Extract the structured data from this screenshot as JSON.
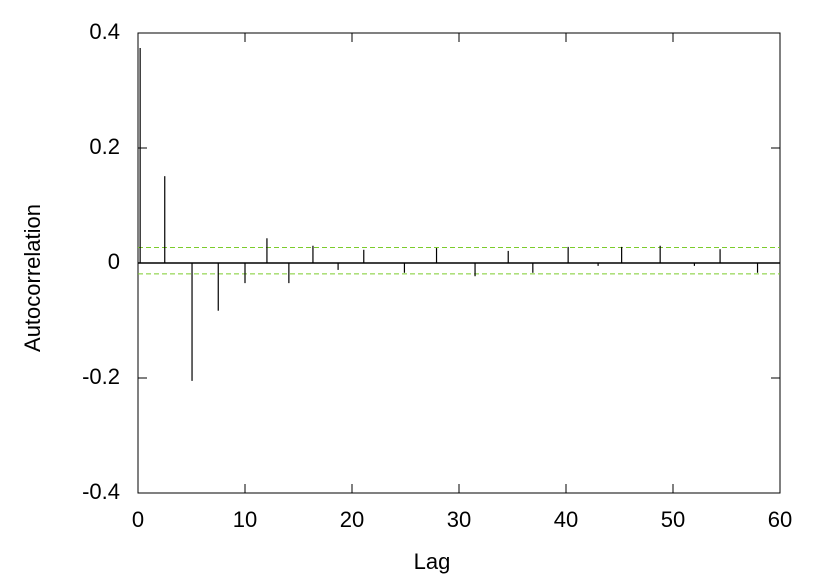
{
  "chart_data": {
    "type": "stem",
    "xlabel": "Lag",
    "ylabel": "Autocorrelation",
    "x": [
      0.2,
      2.5,
      5.05,
      7.5,
      10.0,
      12.05,
      14.1,
      16.35,
      18.7,
      21.1,
      24.9,
      27.9,
      31.5,
      34.6,
      36.9,
      40.2,
      43.0,
      45.2,
      48.8,
      52.0,
      54.4,
      57.9
    ],
    "values": [
      0.374,
      0.151,
      -0.205,
      -0.083,
      -0.035,
      0.043,
      -0.035,
      0.03,
      -0.012,
      0.023,
      -0.017,
      0.026,
      -0.023,
      0.021,
      -0.017,
      0.028,
      -0.005,
      0.028,
      0.03,
      -0.005,
      0.024,
      -0.017
    ],
    "color": "#000000",
    "hlines": [
      0.027,
      -0.019
    ],
    "hline_color": "#7ccc2c",
    "xlim": [
      0,
      60
    ],
    "xticks": [
      0,
      10,
      20,
      30,
      40,
      50,
      60
    ],
    "ylim": [
      -0.4,
      0.4
    ],
    "yticks": [
      0.4,
      0.2,
      0,
      -0.2,
      -0.4
    ],
    "grid": false
  }
}
